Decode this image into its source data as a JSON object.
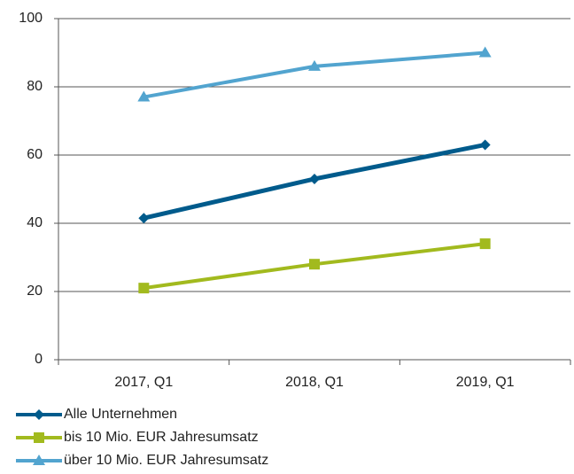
{
  "chart_data": {
    "type": "line",
    "categories": [
      "2017, Q1",
      "2018, Q1",
      "2019, Q1"
    ],
    "series": [
      {
        "name": "Alle Unternehmen",
        "color": "#005b8c",
        "marker": "diamond",
        "values": [
          41.5,
          53,
          63
        ]
      },
      {
        "name": "bis 10 Mio. EUR Jahresumsatz",
        "color": "#a2ba1e",
        "marker": "square",
        "values": [
          21,
          28,
          34
        ]
      },
      {
        "name": "über 10 Mio. EUR Jahresumsatz",
        "color": "#52a4cf",
        "marker": "triangle",
        "values": [
          77,
          86,
          90
        ]
      }
    ],
    "ylim": [
      0,
      100
    ],
    "yticks": [
      0,
      20,
      40,
      60,
      80,
      100
    ],
    "grid": true,
    "legend": "bottom"
  }
}
